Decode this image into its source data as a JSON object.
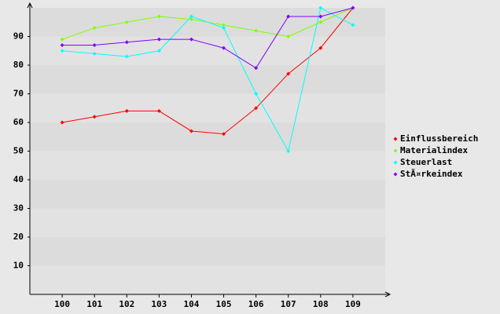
{
  "chart_data": {
    "type": "line",
    "categories": [
      "100",
      "101",
      "102",
      "103",
      "104",
      "105",
      "106",
      "107",
      "108",
      "109"
    ],
    "series": [
      {
        "name": "Einflussbereich",
        "color": "#ff0000",
        "values": [
          60,
          62,
          64,
          64,
          57,
          56,
          65,
          77,
          86,
          100
        ]
      },
      {
        "name": "Materialindex",
        "color": "#80ff00",
        "values": [
          89,
          93,
          95,
          97,
          96,
          94,
          92,
          90,
          95,
          100
        ]
      },
      {
        "name": "Steuerlast",
        "color": "#00ffff",
        "values": [
          85,
          84,
          83,
          85,
          97,
          93,
          70,
          50,
          100,
          94
        ]
      },
      {
        "name": "StÃ¤rkeindex",
        "color": "#8000ff",
        "values": [
          87,
          87,
          88,
          89,
          89,
          86,
          79,
          97,
          97,
          100
        ]
      }
    ],
    "ylim": [
      0,
      100
    ],
    "yticks": [
      10,
      20,
      30,
      40,
      50,
      60,
      70,
      80,
      90
    ],
    "grid": true,
    "legend": "right"
  }
}
